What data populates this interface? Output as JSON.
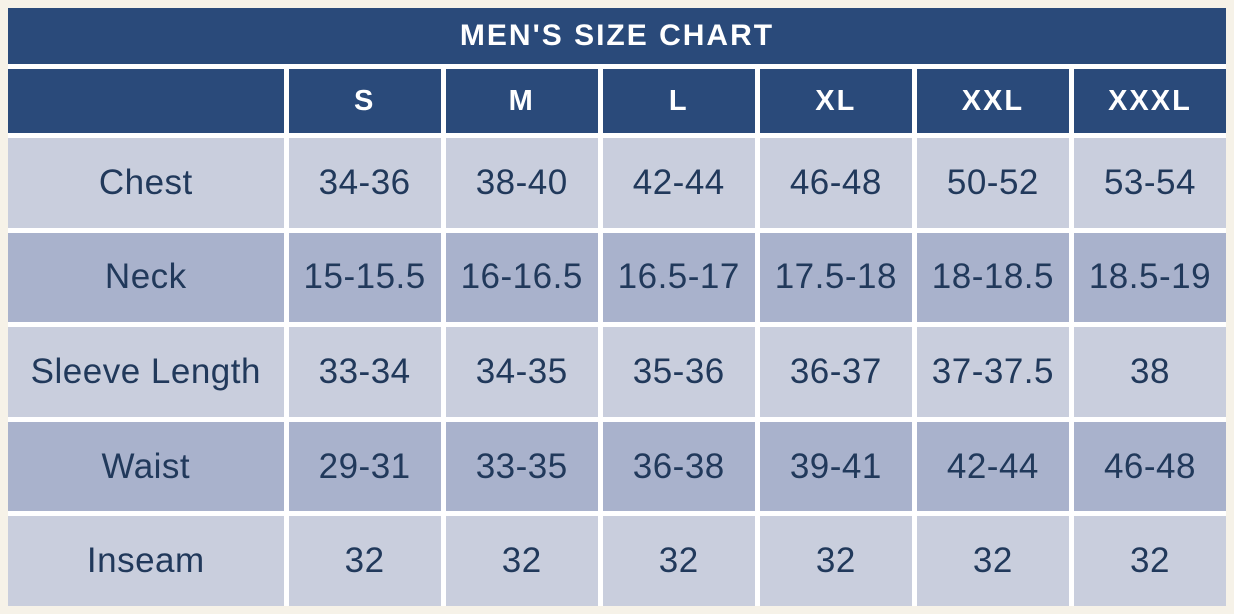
{
  "page": {
    "background": "#f6f2e8"
  },
  "table": {
    "title": "MEN'S SIZE CHART",
    "colors": {
      "header_bg": "#2a4a7a",
      "header_text": "#ffffff",
      "row_light": "#c9cedd",
      "row_dark": "#a9b2cc",
      "cell_text": "#21395b",
      "gap": "#ffffff"
    },
    "columns": [
      "",
      "S",
      "M",
      "L",
      "XL",
      "XXL",
      "XXXL"
    ],
    "rows": [
      {
        "label": "Chest",
        "values": [
          "34-36",
          "38-40",
          "42-44",
          "46-48",
          "50-52",
          "53-54"
        ]
      },
      {
        "label": "Neck",
        "values": [
          "15-15.5",
          "16-16.5",
          "16.5-17",
          "17.5-18",
          "18-18.5",
          "18.5-19"
        ]
      },
      {
        "label": "Sleeve Length",
        "values": [
          "33-34",
          "34-35",
          "35-36",
          "36-37",
          "37-37.5",
          "38"
        ]
      },
      {
        "label": "Waist",
        "values": [
          "29-31",
          "33-35",
          "36-38",
          "39-41",
          "42-44",
          "46-48"
        ]
      },
      {
        "label": "Inseam",
        "values": [
          "32",
          "32",
          "32",
          "32",
          "32",
          "32"
        ]
      }
    ]
  },
  "chart_data": {
    "type": "table",
    "title": "MEN'S SIZE CHART",
    "columns": [
      "",
      "S",
      "M",
      "L",
      "XL",
      "XXL",
      "XXXL"
    ],
    "rows": [
      [
        "Chest",
        "34-36",
        "38-40",
        "42-44",
        "46-48",
        "50-52",
        "53-54"
      ],
      [
        "Neck",
        "15-15.5",
        "16-16.5",
        "16.5-17",
        "17.5-18",
        "18-18.5",
        "18.5-19"
      ],
      [
        "Sleeve Length",
        "33-34",
        "34-35",
        "35-36",
        "36-37",
        "37-37.5",
        "38"
      ],
      [
        "Waist",
        "29-31",
        "33-35",
        "36-38",
        "39-41",
        "42-44",
        "46-48"
      ],
      [
        "Inseam",
        "32",
        "32",
        "32",
        "32",
        "32",
        "32"
      ]
    ],
    "layout": {
      "header_position": "top",
      "striped_rows": true
    }
  }
}
